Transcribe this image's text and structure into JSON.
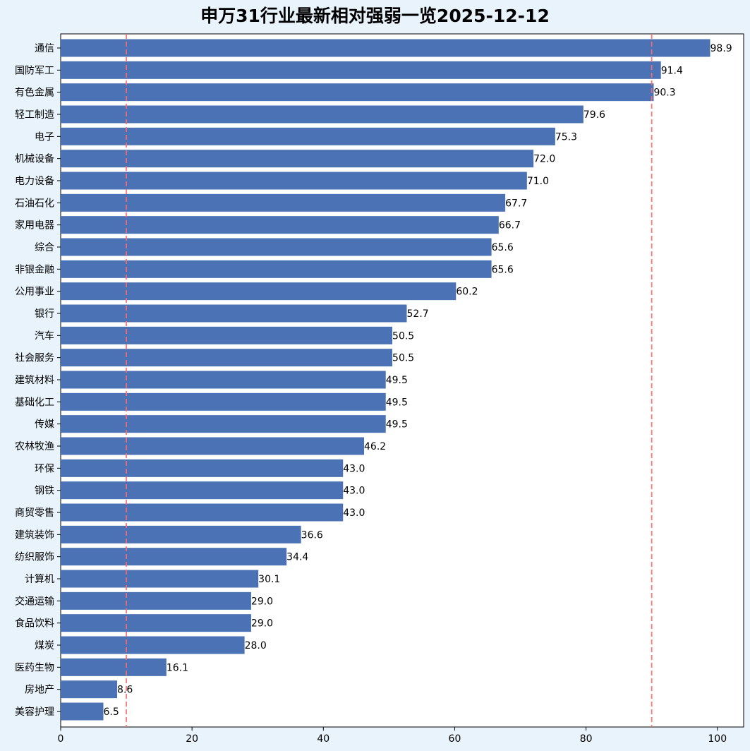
{
  "chart_data": {
    "type": "bar",
    "orientation": "horizontal",
    "title": "申万31行业最新相对强弱一览2025-12-12",
    "xlabel": "",
    "ylabel": "",
    "xlim": [
      0,
      104
    ],
    "x_ticks": [
      0,
      20,
      40,
      60,
      80,
      100
    ],
    "grid": false,
    "bar_color": "#4a72b4",
    "background_color": "#e9f3fb",
    "plot_background": "#ffffff",
    "reference_lines": [
      {
        "value": 10,
        "color": "#ff6b6b",
        "style": "dashed"
      },
      {
        "value": 90,
        "color": "#ff6b6b",
        "style": "dashed"
      }
    ],
    "categories": [
      "通信",
      "国防军工",
      "有色金属",
      "轻工制造",
      "电子",
      "机械设备",
      "电力设备",
      "石油石化",
      "家用电器",
      "综合",
      "非银金融",
      "公用事业",
      "银行",
      "汽车",
      "社会服务",
      "建筑材料",
      "基础化工",
      "传媒",
      "农林牧渔",
      "环保",
      "钢铁",
      "商贸零售",
      "建筑装饰",
      "纺织服饰",
      "计算机",
      "交通运输",
      "食品饮料",
      "煤炭",
      "医药生物",
      "房地产",
      "美容护理"
    ],
    "values": [
      98.9,
      91.4,
      90.3,
      79.6,
      75.3,
      72.0,
      71.0,
      67.7,
      66.7,
      65.6,
      65.6,
      60.2,
      52.7,
      50.5,
      50.5,
      49.5,
      49.5,
      49.5,
      46.2,
      43.0,
      43.0,
      43.0,
      36.6,
      34.4,
      30.1,
      29.0,
      29.0,
      28.0,
      16.1,
      8.6,
      6.5
    ]
  }
}
